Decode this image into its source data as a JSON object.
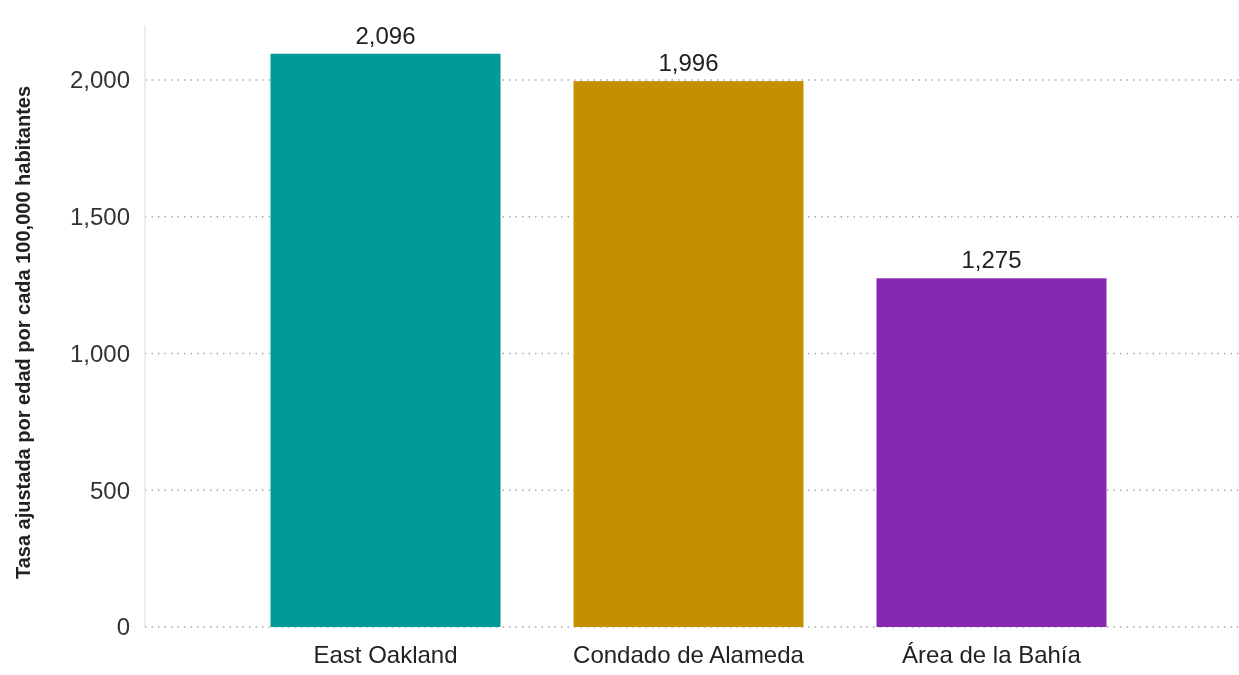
{
  "chart_data": {
    "type": "bar",
    "ylabel": "Tasa ajustada por edad por cada 100,000 habitantes",
    "categories": [
      "East Oakland",
      "Condado de Alameda",
      "Área de la Bahía"
    ],
    "values": [
      2096,
      1996,
      1275
    ],
    "value_labels": [
      "2,096",
      "1,996",
      "1,275"
    ],
    "colors": [
      "#009999",
      "#c59000",
      "#8529b0"
    ],
    "yticks": [
      {
        "value": 0,
        "label": "0"
      },
      {
        "value": 500,
        "label": "500"
      },
      {
        "value": 1000,
        "label": "1,000"
      },
      {
        "value": 1500,
        "label": "1,500"
      },
      {
        "value": 2000,
        "label": "2,000"
      }
    ],
    "ylim": [
      0,
      2200
    ],
    "grid": "y"
  }
}
